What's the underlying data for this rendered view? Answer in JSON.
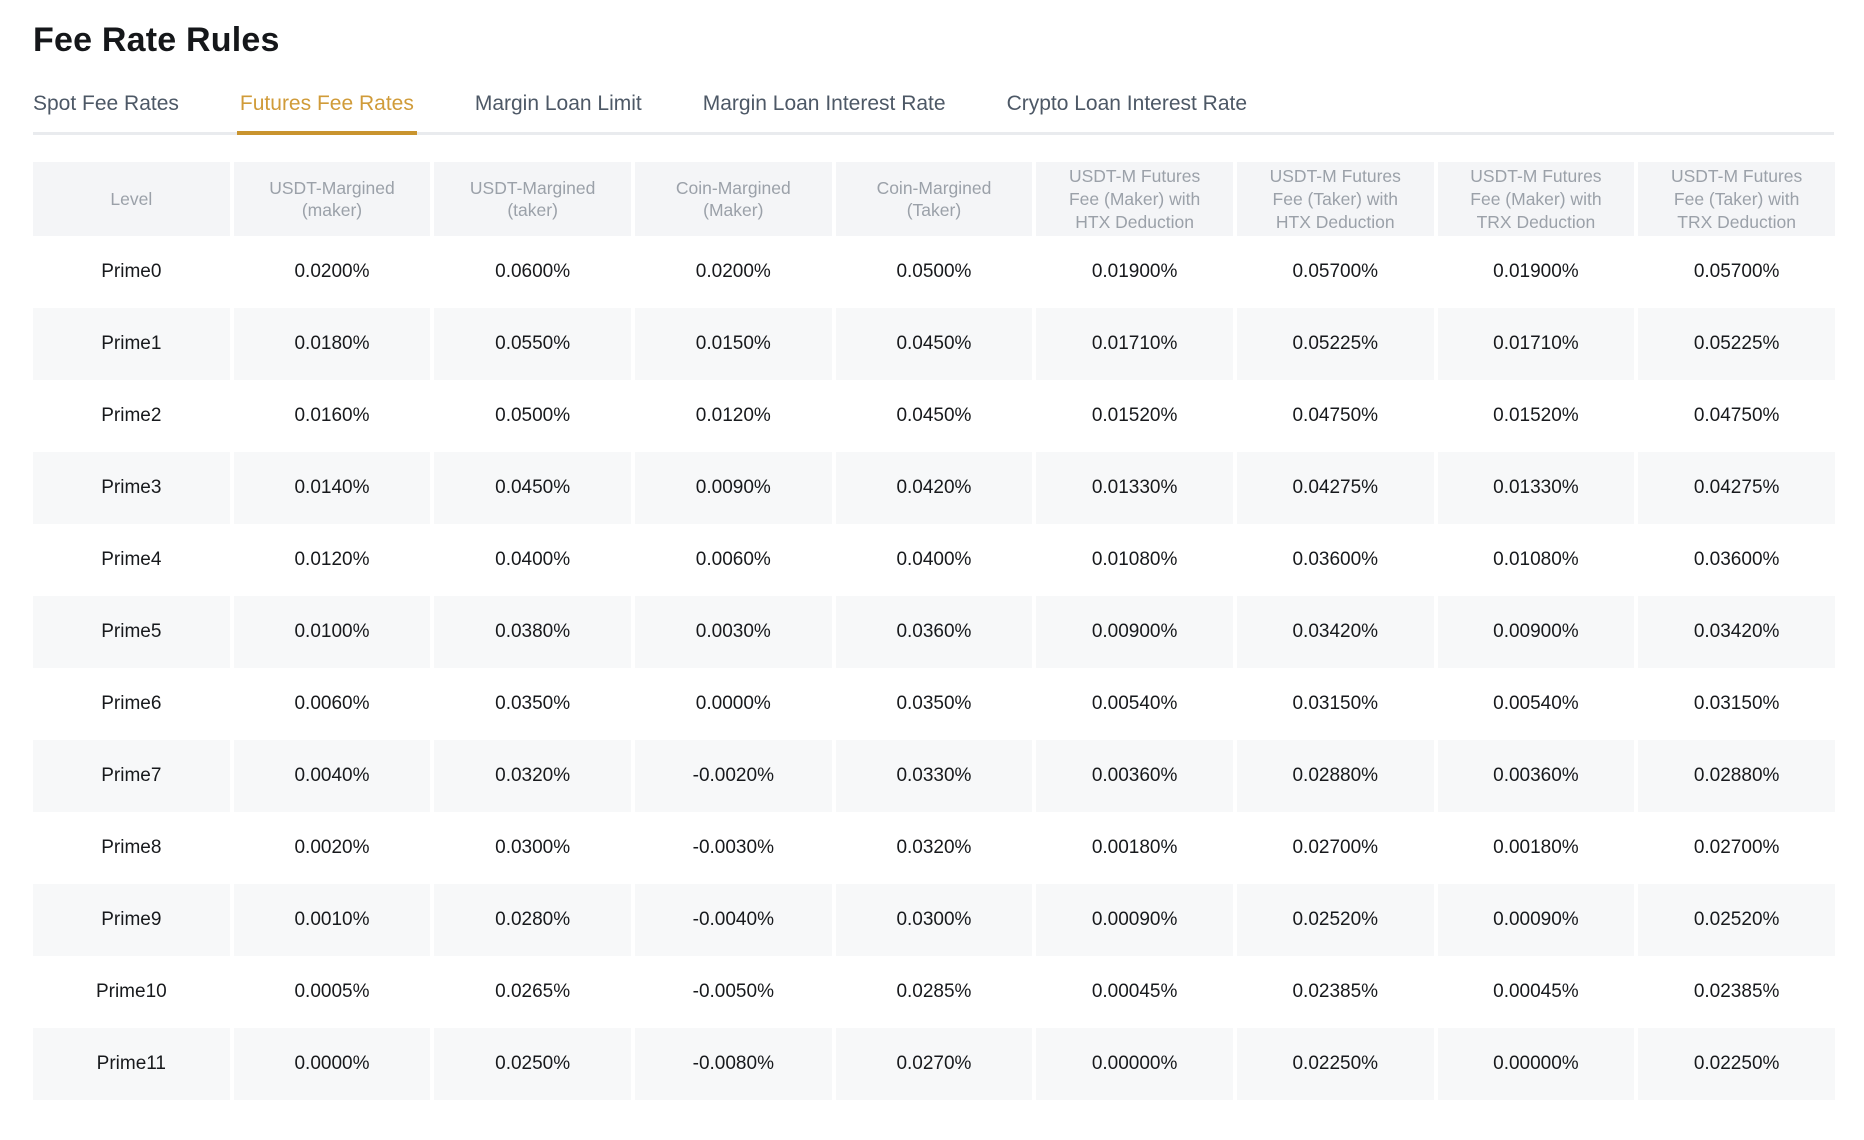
{
  "page": {
    "title": "Fee Rate Rules"
  },
  "tabs": [
    {
      "label": "Spot Fee Rates",
      "active": false
    },
    {
      "label": "Futures Fee Rates",
      "active": true
    },
    {
      "label": "Margin Loan Limit",
      "active": false
    },
    {
      "label": "Margin Loan Interest Rate",
      "active": false
    },
    {
      "label": "Crypto Loan Interest Rate",
      "active": false
    }
  ],
  "colors": {
    "accent_gold": "#d09b39",
    "accent_gold_underline": "#c9942e",
    "tab_inactive_text": "#4d5866",
    "header_text": "#9ba1a9",
    "header_bg": "#f4f5f7",
    "row_alt_bg": "#f7f8f9",
    "body_text": "#17191c"
  },
  "table": {
    "columns": [
      "Level",
      "USDT-Margined (maker)",
      "USDT-Margined (taker)",
      "Coin-Margined (Maker)",
      "Coin-Margined (Taker)",
      "USDT-M Futures Fee (Maker) with HTX Deduction",
      "USDT-M Futures Fee (Taker) with HTX Deduction",
      "USDT-M Futures Fee (Maker) with TRX Deduction",
      "USDT-M Futures Fee (Taker) with TRX Deduction"
    ],
    "rows": [
      {
        "level": "Prime0",
        "values": [
          "0.0200%",
          "0.0600%",
          "0.0200%",
          "0.0500%",
          "0.01900%",
          "0.05700%",
          "0.01900%",
          "0.05700%"
        ]
      },
      {
        "level": "Prime1",
        "values": [
          "0.0180%",
          "0.0550%",
          "0.0150%",
          "0.0450%",
          "0.01710%",
          "0.05225%",
          "0.01710%",
          "0.05225%"
        ]
      },
      {
        "level": "Prime2",
        "values": [
          "0.0160%",
          "0.0500%",
          "0.0120%",
          "0.0450%",
          "0.01520%",
          "0.04750%",
          "0.01520%",
          "0.04750%"
        ]
      },
      {
        "level": "Prime3",
        "values": [
          "0.0140%",
          "0.0450%",
          "0.0090%",
          "0.0420%",
          "0.01330%",
          "0.04275%",
          "0.01330%",
          "0.04275%"
        ]
      },
      {
        "level": "Prime4",
        "values": [
          "0.0120%",
          "0.0400%",
          "0.0060%",
          "0.0400%",
          "0.01080%",
          "0.03600%",
          "0.01080%",
          "0.03600%"
        ]
      },
      {
        "level": "Prime5",
        "values": [
          "0.0100%",
          "0.0380%",
          "0.0030%",
          "0.0360%",
          "0.00900%",
          "0.03420%",
          "0.00900%",
          "0.03420%"
        ]
      },
      {
        "level": "Prime6",
        "values": [
          "0.0060%",
          "0.0350%",
          "0.0000%",
          "0.0350%",
          "0.00540%",
          "0.03150%",
          "0.00540%",
          "0.03150%"
        ]
      },
      {
        "level": "Prime7",
        "values": [
          "0.0040%",
          "0.0320%",
          "-0.0020%",
          "0.0330%",
          "0.00360%",
          "0.02880%",
          "0.00360%",
          "0.02880%"
        ]
      },
      {
        "level": "Prime8",
        "values": [
          "0.0020%",
          "0.0300%",
          "-0.0030%",
          "0.0320%",
          "0.00180%",
          "0.02700%",
          "0.00180%",
          "0.02700%"
        ]
      },
      {
        "level": "Prime9",
        "values": [
          "0.0010%",
          "0.0280%",
          "-0.0040%",
          "0.0300%",
          "0.00090%",
          "0.02520%",
          "0.00090%",
          "0.02520%"
        ]
      },
      {
        "level": "Prime10",
        "values": [
          "0.0005%",
          "0.0265%",
          "-0.0050%",
          "0.0285%",
          "0.00045%",
          "0.02385%",
          "0.00045%",
          "0.02385%"
        ]
      },
      {
        "level": "Prime11",
        "values": [
          "0.0000%",
          "0.0250%",
          "-0.0080%",
          "0.0270%",
          "0.00000%",
          "0.02250%",
          "0.00000%",
          "0.02250%"
        ]
      }
    ]
  }
}
